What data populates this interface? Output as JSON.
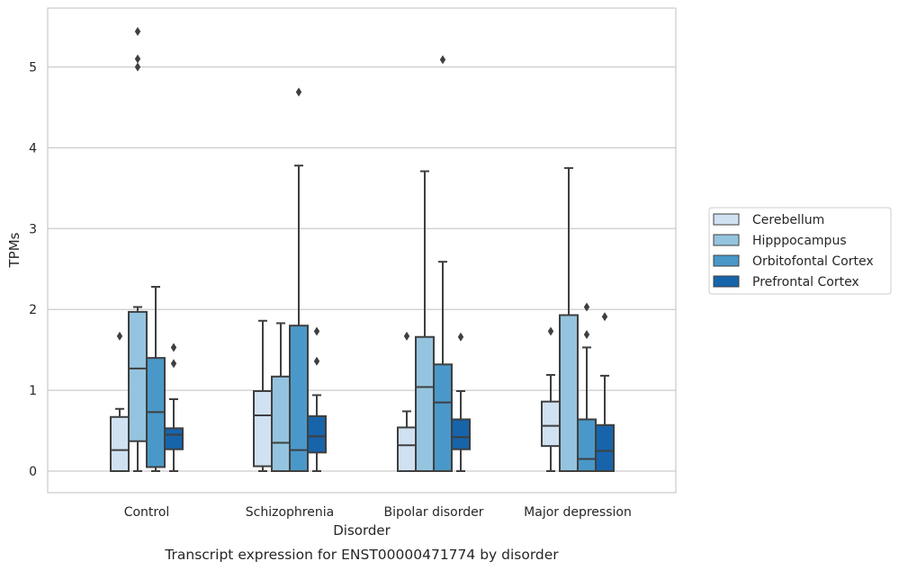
{
  "chart_data": {
    "type": "box",
    "title": "",
    "caption": "Transcript expression for ENST00000471774 by disorder",
    "xlabel": "Disorder",
    "ylabel": "TPMs",
    "ylim": [
      -0.27,
      5.72
    ],
    "yticks": [
      0,
      1,
      2,
      3,
      4,
      5
    ],
    "grid": true,
    "legend_position": "right",
    "categories": [
      "Control",
      "Schizophrenia",
      "Bipolar disorder",
      "Major depression"
    ],
    "series": [
      {
        "name": "Cerebellum",
        "color": "#d0e1f2",
        "boxes": [
          {
            "whislo": 0.0,
            "q1": 0.0,
            "med": 0.26,
            "q3": 0.67,
            "whishi": 0.77,
            "fliers": [
              1.67
            ]
          },
          {
            "whislo": 0.0,
            "q1": 0.06,
            "med": 0.69,
            "q3": 0.99,
            "whishi": 1.86,
            "fliers": []
          },
          {
            "whislo": 0.0,
            "q1": 0.0,
            "med": 0.32,
            "q3": 0.54,
            "whishi": 0.74,
            "fliers": [
              1.67
            ]
          },
          {
            "whislo": 0.0,
            "q1": 0.31,
            "med": 0.56,
            "q3": 0.86,
            "whishi": 1.19,
            "fliers": [
              1.73
            ]
          }
        ]
      },
      {
        "name": "Hipppocampus",
        "color": "#94c4df",
        "boxes": [
          {
            "whislo": 0.0,
            "q1": 0.37,
            "med": 1.27,
            "q3": 1.97,
            "whishi": 2.03,
            "fliers": [
              5.0,
              5.1,
              5.44
            ]
          },
          {
            "whislo": 0.0,
            "q1": 0.0,
            "med": 0.35,
            "q3": 1.17,
            "whishi": 1.83,
            "fliers": []
          },
          {
            "whislo": 0.0,
            "q1": 0.0,
            "med": 1.04,
            "q3": 1.66,
            "whishi": 3.71,
            "fliers": []
          },
          {
            "whislo": 0.0,
            "q1": 0.0,
            "med": 0.0,
            "q3": 1.93,
            "whishi": 3.75,
            "fliers": []
          }
        ]
      },
      {
        "name": "Orbitofontal Cortex",
        "color": "#4a98c9",
        "boxes": [
          {
            "whislo": 0.0,
            "q1": 0.05,
            "med": 0.73,
            "q3": 1.4,
            "whishi": 2.28,
            "fliers": []
          },
          {
            "whislo": 0.0,
            "q1": 0.0,
            "med": 0.26,
            "q3": 1.8,
            "whishi": 3.78,
            "fliers": [
              4.69
            ]
          },
          {
            "whislo": 0.0,
            "q1": 0.0,
            "med": 0.85,
            "q3": 1.32,
            "whishi": 2.59,
            "fliers": [
              5.09
            ]
          },
          {
            "whislo": 0.0,
            "q1": 0.0,
            "med": 0.15,
            "q3": 0.64,
            "whishi": 1.53,
            "fliers": [
              1.69,
              2.03
            ]
          }
        ]
      },
      {
        "name": "Prefrontal Cortex",
        "color": "#1764ab",
        "boxes": [
          {
            "whislo": 0.0,
            "q1": 0.27,
            "med": 0.45,
            "q3": 0.53,
            "whishi": 0.89,
            "fliers": [
              1.33,
              1.53
            ]
          },
          {
            "whislo": 0.0,
            "q1": 0.23,
            "med": 0.43,
            "q3": 0.68,
            "whishi": 0.94,
            "fliers": [
              1.36,
              1.73
            ]
          },
          {
            "whislo": 0.0,
            "q1": 0.27,
            "med": 0.42,
            "q3": 0.64,
            "whishi": 0.99,
            "fliers": [
              1.66
            ]
          },
          {
            "whislo": 0.0,
            "q1": 0.0,
            "med": 0.25,
            "q3": 0.57,
            "whishi": 1.18,
            "fliers": [
              1.91
            ]
          }
        ]
      }
    ]
  }
}
